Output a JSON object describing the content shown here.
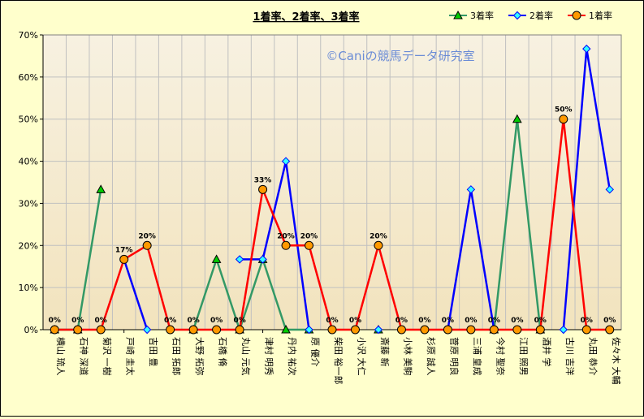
{
  "chart_data": {
    "type": "line",
    "title": "1着率、2着率、3着率",
    "watermark": "©Caniの競馬データ研究室",
    "xlabel": "",
    "ylabel": "",
    "ylim": [
      0,
      0.7
    ],
    "y_tick_labels": [
      "0%",
      "10%",
      "20%",
      "30%",
      "40%",
      "50%",
      "60%",
      "70%"
    ],
    "legend_position": "top-right",
    "grid": true,
    "categories": [
      "横山 琉人",
      "石神 深道",
      "菊沢 一樹",
      "戸崎 圭太",
      "吉田 豊",
      "石田 拓郎",
      "大野 拓弥",
      "石橋 脩",
      "丸山 元気",
      "津村 明秀",
      "丹内 祐次",
      "原 優介",
      "柴田 裕一郎",
      "小沢 大仁",
      "斎藤 新",
      "小林 美駒",
      "杉原 誠人",
      "菅原 明良",
      "三浦 皇成",
      "今村 聖奈",
      "江田 照男",
      "酒井 学",
      "古川 吉洋",
      "丸田 恭介",
      "佐々木 大輔"
    ],
    "series": [
      {
        "name": "3着率",
        "color": "#339966",
        "marker": "triangle",
        "marker_fill": "#00cc00",
        "values": [
          0,
          0,
          0.333,
          null,
          null,
          null,
          0,
          0.167,
          0,
          0.167,
          0,
          0,
          null,
          null,
          0,
          null,
          null,
          null,
          null,
          0,
          0.5,
          0,
          null,
          null,
          null
        ]
      },
      {
        "name": "2着率",
        "color": "#0000ff",
        "marker": "diamond",
        "marker_fill": "#33ffff",
        "values": [
          null,
          null,
          null,
          0.167,
          0,
          null,
          null,
          null,
          0.167,
          0.167,
          0.4,
          0,
          null,
          null,
          0,
          null,
          null,
          0,
          0.333,
          0,
          null,
          null,
          0,
          0.667,
          0.333
        ]
      },
      {
        "name": "1着率",
        "color": "#ff0000",
        "marker": "circle",
        "marker_fill": "#ff9900",
        "values": [
          0,
          0,
          0,
          0.167,
          0.2,
          0,
          0,
          0,
          0,
          0.333,
          0.2,
          0.2,
          0,
          0,
          0.2,
          0,
          0,
          0,
          0,
          0,
          0,
          0,
          0.5,
          0,
          0
        ]
      }
    ],
    "data_labels": [
      {
        "category_index": 0,
        "text": "0%"
      },
      {
        "category_index": 1,
        "text": "0%"
      },
      {
        "category_index": 2,
        "text": "0%"
      },
      {
        "category_index": 3,
        "text": "17%"
      },
      {
        "category_index": 4,
        "text": "20%"
      },
      {
        "category_index": 5,
        "text": "0%"
      },
      {
        "category_index": 6,
        "text": "0%"
      },
      {
        "category_index": 7,
        "text": "0%"
      },
      {
        "category_index": 8,
        "text": "0%"
      },
      {
        "category_index": 9,
        "text": "33%"
      },
      {
        "category_index": 10,
        "text": "20%"
      },
      {
        "category_index": 11,
        "text": "20%"
      },
      {
        "category_index": 12,
        "text": "0%"
      },
      {
        "category_index": 13,
        "text": "0%"
      },
      {
        "category_index": 14,
        "text": "20%"
      },
      {
        "category_index": 15,
        "text": "0%"
      },
      {
        "category_index": 16,
        "text": "0%"
      },
      {
        "category_index": 17,
        "text": "0%"
      },
      {
        "category_index": 18,
        "text": "0%"
      },
      {
        "category_index": 19,
        "text": "0%"
      },
      {
        "category_index": 20,
        "text": "0%"
      },
      {
        "category_index": 21,
        "text": "0%"
      },
      {
        "category_index": 22,
        "text": "50%"
      },
      {
        "category_index": 23,
        "text": "0%"
      },
      {
        "category_index": 24,
        "text": "0%"
      }
    ]
  }
}
